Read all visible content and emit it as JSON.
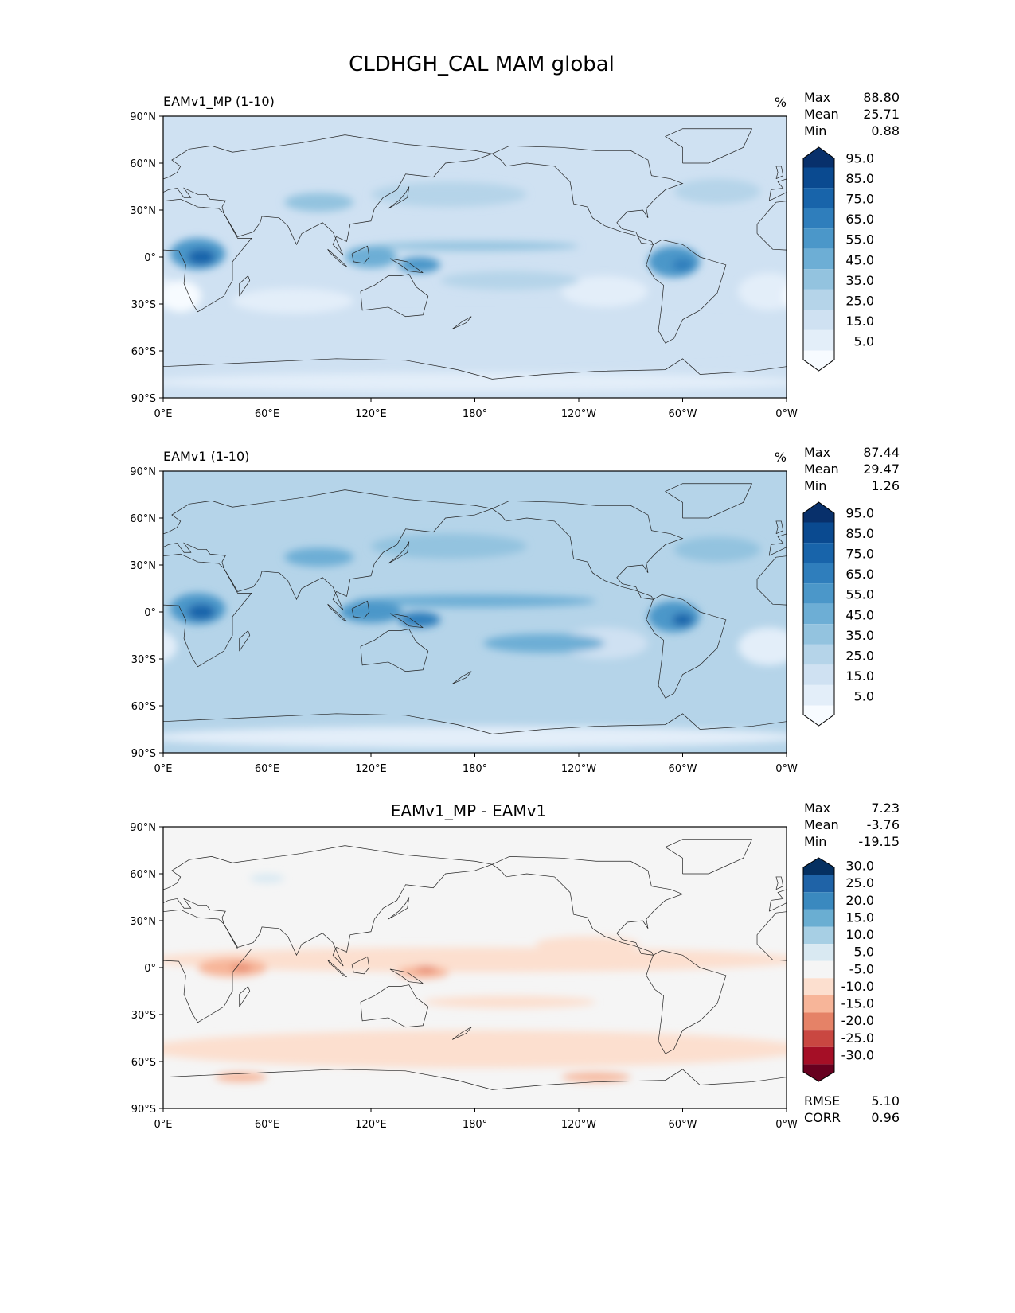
{
  "title": "CLDHGH_CAL MAM global",
  "chart_data": {
    "type": "map-contour",
    "title": "CLDHGH_CAL MAM global",
    "x_ticks": [
      "0°E",
      "60°E",
      "120°E",
      "180°",
      "120°W",
      "60°W",
      "0°W"
    ],
    "x_tick_lons": [
      0,
      60,
      120,
      180,
      240,
      300,
      360
    ],
    "y_ticks": [
      "90°N",
      "60°N",
      "30°N",
      "0°",
      "30°S",
      "60°S",
      "90°S"
    ],
    "y_tick_lats": [
      90,
      60,
      30,
      0,
      -30,
      -60,
      -90
    ],
    "panels": [
      {
        "name": "test",
        "subtitle": "EAMv1_MP (1-10)",
        "units": "%",
        "stats": [
          {
            "label": "Max",
            "value": "88.80"
          },
          {
            "label": "Mean",
            "value": "25.71"
          },
          {
            "label": "Min",
            "value": "0.88"
          }
        ],
        "levels": [
          5,
          15,
          25,
          35,
          45,
          55,
          65,
          75,
          85,
          95
        ],
        "level_labels": [
          "5.0",
          "15.0",
          "25.0",
          "35.0",
          "45.0",
          "55.0",
          "65.0",
          "75.0",
          "85.0",
          "95.0"
        ],
        "colors": [
          "#f7fbff",
          "#e3eef9",
          "#cfe1f2",
          "#b5d4e9",
          "#93c3df",
          "#6daed5",
          "#4b97c9",
          "#2f7ebc",
          "#1864aa",
          "#0a4a90",
          "#08306b"
        ],
        "base_value": 20,
        "blobs": [
          {
            "lon": 180,
            "lat": -50,
            "rlon": 190,
            "rlat": 12,
            "value": 22
          },
          {
            "lon": 180,
            "lat": -80,
            "rlon": 190,
            "rlat": 6,
            "value": 8
          },
          {
            "lon": 350,
            "lat": -22,
            "rlon": 18,
            "rlat": 12,
            "value": 8
          },
          {
            "lon": 255,
            "lat": -22,
            "rlon": 25,
            "rlat": 10,
            "value": 12
          },
          {
            "lon": 75,
            "lat": -28,
            "rlon": 35,
            "rlat": 8,
            "value": 12
          },
          {
            "lon": 10,
            "lat": -25,
            "rlon": 12,
            "rlat": 10,
            "value": 4
          },
          {
            "lon": 165,
            "lat": 40,
            "rlon": 45,
            "rlat": 8,
            "value": 32
          },
          {
            "lon": 320,
            "lat": 42,
            "rlon": 25,
            "rlat": 8,
            "value": 32
          },
          {
            "lon": 90,
            "lat": 35,
            "rlon": 20,
            "rlat": 6,
            "value": 40
          },
          {
            "lon": 180,
            "lat": 7,
            "rlon": 60,
            "rlat": 3,
            "value": 40
          },
          {
            "lon": 200,
            "lat": -15,
            "rlon": 40,
            "rlat": 6,
            "value": 33
          },
          {
            "lon": 20,
            "lat": 2,
            "rlon": 16,
            "rlat": 10,
            "value": 55
          },
          {
            "lon": 22,
            "lat": 0,
            "rlon": 8,
            "rlat": 5,
            "value": 75
          },
          {
            "lon": 295,
            "lat": -3,
            "rlon": 15,
            "rlat": 10,
            "value": 55
          },
          {
            "lon": 300,
            "lat": -5,
            "rlon": 6,
            "rlat": 4,
            "value": 72
          },
          {
            "lon": 120,
            "lat": 0,
            "rlon": 15,
            "rlat": 7,
            "value": 52
          },
          {
            "lon": 148,
            "lat": -5,
            "rlon": 12,
            "rlat": 5,
            "value": 58
          }
        ]
      },
      {
        "name": "reference",
        "subtitle": "EAMv1 (1-10)",
        "units": "%",
        "stats": [
          {
            "label": "Max",
            "value": "87.44"
          },
          {
            "label": "Mean",
            "value": "29.47"
          },
          {
            "label": "Min",
            "value": "1.26"
          }
        ],
        "levels": [
          5,
          15,
          25,
          35,
          45,
          55,
          65,
          75,
          85,
          95
        ],
        "level_labels": [
          "5.0",
          "15.0",
          "25.0",
          "35.0",
          "45.0",
          "55.0",
          "65.0",
          "75.0",
          "85.0",
          "95.0"
        ],
        "colors": [
          "#f7fbff",
          "#e3eef9",
          "#cfe1f2",
          "#b5d4e9",
          "#93c3df",
          "#6daed5",
          "#4b97c9",
          "#2f7ebc",
          "#1864aa",
          "#0a4a90",
          "#08306b"
        ],
        "base_value": 28,
        "blobs": [
          {
            "lon": 180,
            "lat": -80,
            "rlon": 190,
            "rlat": 7,
            "value": 12
          },
          {
            "lon": 350,
            "lat": -22,
            "rlon": 18,
            "rlat": 12,
            "value": 12
          },
          {
            "lon": 255,
            "lat": -20,
            "rlon": 25,
            "rlat": 10,
            "value": 15
          },
          {
            "lon": 165,
            "lat": 42,
            "rlon": 45,
            "rlat": 8,
            "value": 40
          },
          {
            "lon": 320,
            "lat": 40,
            "rlon": 25,
            "rlat": 8,
            "value": 40
          },
          {
            "lon": 90,
            "lat": 35,
            "rlon": 20,
            "rlat": 6,
            "value": 45
          },
          {
            "lon": 180,
            "lat": 7,
            "rlon": 70,
            "rlat": 4,
            "value": 45
          },
          {
            "lon": 220,
            "lat": -20,
            "rlon": 35,
            "rlat": 6,
            "value": 45
          },
          {
            "lon": 20,
            "lat": 2,
            "rlon": 16,
            "rlat": 10,
            "value": 60
          },
          {
            "lon": 22,
            "lat": 0,
            "rlon": 8,
            "rlat": 5,
            "value": 78
          },
          {
            "lon": 295,
            "lat": -3,
            "rlon": 15,
            "rlat": 10,
            "value": 60
          },
          {
            "lon": 300,
            "lat": -5,
            "rlon": 6,
            "rlat": 4,
            "value": 75
          },
          {
            "lon": 120,
            "lat": 0,
            "rlon": 18,
            "rlat": 7,
            "value": 58
          },
          {
            "lon": 148,
            "lat": -5,
            "rlon": 12,
            "rlat": 5,
            "value": 68
          }
        ]
      },
      {
        "name": "diff",
        "subtitle": "EAMv1_MP - EAMv1",
        "units": "",
        "stats": [
          {
            "label": "Max",
            "value": "7.23"
          },
          {
            "label": "Mean",
            "value": "-3.76"
          },
          {
            "label": "Min",
            "value": "-19.15"
          }
        ],
        "levels": [
          -30,
          -25,
          -20,
          -15,
          -10,
          -5,
          5,
          10,
          15,
          20,
          25,
          30
        ],
        "level_labels": [
          "-30.0",
          "-25.0",
          "-20.0",
          "-15.0",
          "-10.0",
          "-5.0",
          "5.0",
          "10.0",
          "15.0",
          "20.0",
          "25.0",
          "30.0"
        ],
        "colors": [
          "#67001f",
          "#a50f26",
          "#c94741",
          "#e58267",
          "#f7b599",
          "#fcdfcf",
          "#f5f5f5",
          "#d9e9f2",
          "#a7cfe4",
          "#6aaed2",
          "#3a89bf",
          "#1f63a7",
          "#053061"
        ],
        "base_value": 0,
        "blobs": [
          {
            "lon": 180,
            "lat": -52,
            "rlon": 190,
            "rlat": 12,
            "value": -7
          },
          {
            "lon": 180,
            "lat": 5,
            "rlon": 190,
            "rlat": 8,
            "value": -6
          },
          {
            "lon": 200,
            "lat": -22,
            "rlon": 50,
            "rlat": 4,
            "value": -7
          },
          {
            "lon": 45,
            "lat": -70,
            "rlon": 15,
            "rlat": 3,
            "value": -12
          },
          {
            "lon": 250,
            "lat": -70,
            "rlon": 20,
            "rlat": 3,
            "value": -12
          },
          {
            "lon": 40,
            "lat": 0,
            "rlon": 20,
            "rlat": 6,
            "value": -12
          },
          {
            "lon": 45,
            "lat": 0,
            "rlon": 6,
            "rlat": 2,
            "value": -18
          },
          {
            "lon": 150,
            "lat": -3,
            "rlon": 15,
            "rlat": 4,
            "value": -12
          },
          {
            "lon": 152,
            "lat": -1,
            "rlon": 6,
            "rlat": 2,
            "value": -20
          },
          {
            "lon": 245,
            "lat": 15,
            "rlon": 30,
            "rlat": 5,
            "value": -7
          },
          {
            "lon": 60,
            "lat": 57,
            "rlon": 10,
            "rlat": 3,
            "value": 7
          }
        ]
      }
    ],
    "rmse": {
      "label": "RMSE",
      "value": "5.10"
    },
    "corr": {
      "label": "CORR",
      "value": "0.96"
    }
  }
}
